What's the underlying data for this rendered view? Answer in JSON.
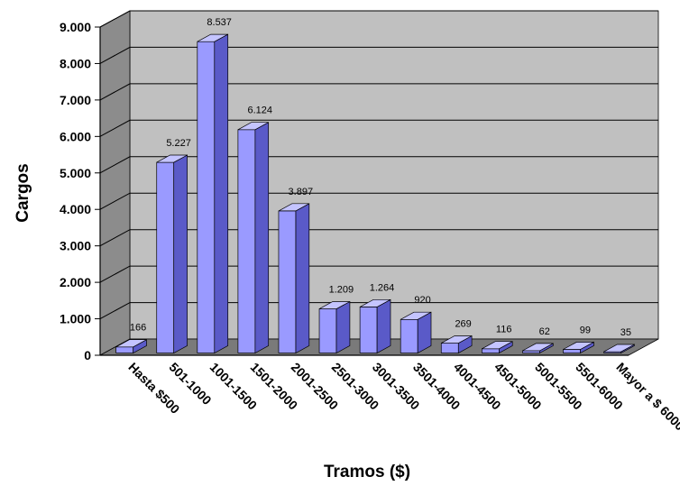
{
  "chart_data": {
    "type": "bar",
    "style": "3d",
    "xlabel": "Tramos ($)",
    "ylabel": "Cargos",
    "categories": [
      "Hasta $500",
      "501-1000",
      "1001-1500",
      "1501-2000",
      "2001-2500",
      "2501-3000",
      "3001-3500",
      "3501-4000",
      "4001-4500",
      "4501-5000",
      "5001-5500",
      "5501-6000",
      "Mayor a $ 6000"
    ],
    "values": [
      166,
      5227,
      8537,
      6124,
      3897,
      1209,
      1264,
      920,
      269,
      116,
      62,
      99,
      35
    ],
    "value_labels": [
      "166",
      "5.227",
      "8.537",
      "6.124",
      "3.897",
      "1.209",
      "1.264",
      "920",
      "269",
      "116",
      "62",
      "99",
      "35"
    ],
    "ylim": [
      0,
      9000
    ],
    "yticks": [
      0,
      1000,
      2000,
      3000,
      4000,
      5000,
      6000,
      7000,
      8000,
      9000
    ],
    "ytick_labels": [
      "0",
      "1.000",
      "2.000",
      "3.000",
      "4.000",
      "5.000",
      "6.000",
      "7.000",
      "8.000",
      "9.000"
    ],
    "grid": true,
    "legend": "none",
    "colors": {
      "bar_front": "#9a9aff",
      "bar_top": "#c4c4ff",
      "bar_side": "#5a5ac8",
      "wall": "#c0c0c0",
      "wall_side": "#8c8c8c",
      "floor": "#7a7a7a",
      "grid": "#000000"
    }
  }
}
